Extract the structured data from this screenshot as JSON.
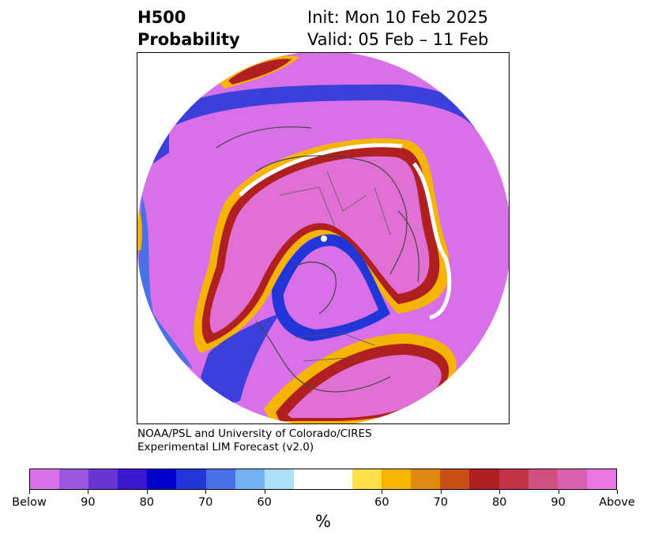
{
  "title": {
    "left_line1": "H500",
    "left_line2": "Probability",
    "right_line1": "Init: Mon 10 Feb 2025",
    "right_line2": "Valid: 05 Feb – 11 Feb"
  },
  "credit": {
    "line1": "NOAA/PSL and University of Colorado/CIRES",
    "line2": "Experimental LIM Forecast (v2.0)"
  },
  "colorbar": {
    "unit": "%",
    "colors": [
      "#d870e8",
      "#9b55e0",
      "#6a35d6",
      "#3a18d2",
      "#0000cc",
      "#2236d8",
      "#4a72e6",
      "#72b2f2",
      "#aee0fc",
      "#ffffff",
      "#ffffff",
      "#ffe04a",
      "#f4b400",
      "#e08810",
      "#c85018",
      "#b02020",
      "#c43448",
      "#d05080",
      "#dc60b0",
      "#e878e0"
    ],
    "ticks": [
      "Below",
      "90",
      "80",
      "70",
      "60",
      "60",
      "70",
      "80",
      "90",
      "Above"
    ]
  },
  "map": {
    "projection": "north-polar-stereographic",
    "fill_colors": {
      "above_outer": "#d870e8",
      "above_inner": "#e070d4",
      "below_high": "#0000cc",
      "neutral": "#ffffff",
      "ridge_edge": "#f4b400",
      "ridge_core": "#b02020"
    }
  }
}
